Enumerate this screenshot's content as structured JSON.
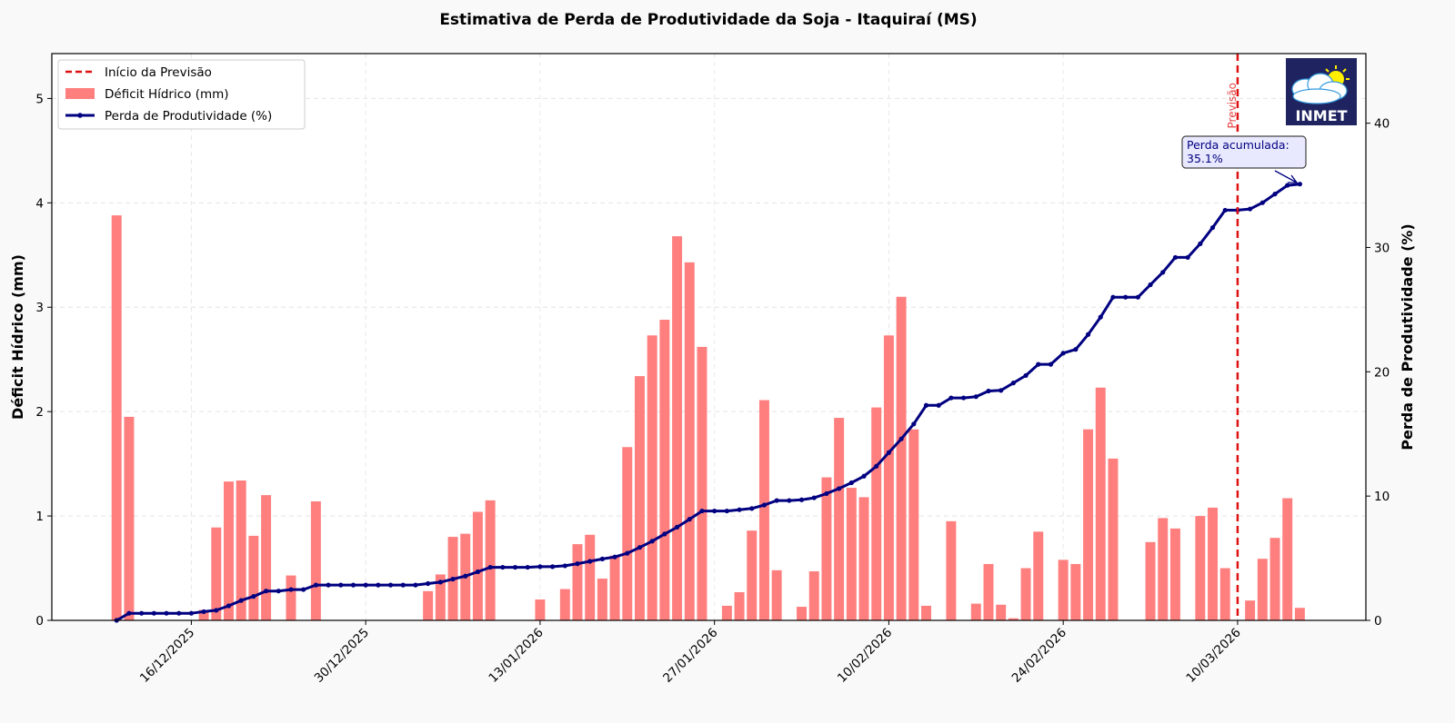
{
  "chart_data": {
    "type": "bar+line",
    "title": "Estimativa de Perda de Produtividade da Soja - Itaquiraí (MS)",
    "ylabel": "Déficit Hídrico (mm)",
    "ylabel_right": "Perda de Produtividade (%)",
    "ylim": [
      0,
      5.43
    ],
    "ylim_right": [
      0,
      45.6
    ],
    "yticks": [
      0,
      1,
      2,
      3,
      4,
      5
    ],
    "yticks_right": [
      0,
      10,
      20,
      30,
      40
    ],
    "grid": true,
    "start_date": "2025-12-10",
    "xlim_days_from_start": [
      -5.2,
      100.3
    ],
    "xticks": [
      {
        "day": 6,
        "label": "16/12/2025"
      },
      {
        "day": 20,
        "label": "30/12/2025"
      },
      {
        "day": 34,
        "label": "13/01/2026"
      },
      {
        "day": 48,
        "label": "27/01/2026"
      },
      {
        "day": 62,
        "label": "10/02/2026"
      },
      {
        "day": 76,
        "label": "24/02/2026"
      },
      {
        "day": 90,
        "label": "10/03/2026"
      }
    ],
    "forecast_start_day": 90,
    "forecast_label": "Previsão",
    "series": [
      {
        "name": "Déficit Hídrico (mm)",
        "kind": "bar",
        "axis": "left",
        "color": "#ff7f7f",
        "values": [
          3.88,
          1.95,
          0,
          0,
          0,
          0,
          0,
          0.1,
          0.89,
          1.33,
          1.34,
          0.81,
          1.2,
          0,
          0.43,
          0,
          1.14,
          0,
          0,
          0,
          0,
          0,
          0,
          0,
          0,
          0.28,
          0.44,
          0.8,
          0.83,
          1.04,
          1.15,
          0,
          0,
          0,
          0.2,
          0,
          0.3,
          0.73,
          0.82,
          0.4,
          0.62,
          1.66,
          2.34,
          2.73,
          2.88,
          3.68,
          3.43,
          2.62,
          0,
          0.14,
          0.27,
          0.86,
          2.11,
          0.48,
          0,
          0.13,
          0.47,
          1.37,
          1.94,
          1.27,
          1.18,
          2.04,
          2.73,
          3.1,
          1.83,
          0.14,
          0,
          0.95,
          0,
          0.16,
          0.54,
          0.15,
          0.02,
          0.5,
          0.85,
          0,
          0.58,
          0.54,
          1.83,
          2.23,
          1.55,
          0,
          0,
          0.75,
          0.98,
          0.88,
          0,
          1.0,
          1.08,
          0.5,
          0,
          0.19,
          0.59,
          0.79,
          1.17,
          0.12
        ]
      },
      {
        "name": "Perda de Produtividade (%)",
        "kind": "line",
        "axis": "right",
        "color": "#000080",
        "values": [
          0,
          0.57,
          0.57,
          0.57,
          0.57,
          0.57,
          0.57,
          0.7,
          0.81,
          1.17,
          1.6,
          1.93,
          2.36,
          2.36,
          2.48,
          2.48,
          2.84,
          2.84,
          2.84,
          2.84,
          2.84,
          2.84,
          2.84,
          2.84,
          2.84,
          2.96,
          3.08,
          3.32,
          3.56,
          3.91,
          4.27,
          4.27,
          4.27,
          4.27,
          4.32,
          4.32,
          4.39,
          4.56,
          4.75,
          4.94,
          5.1,
          5.4,
          5.87,
          6.37,
          6.95,
          7.5,
          8.14,
          8.8,
          8.8,
          8.8,
          8.9,
          9.0,
          9.28,
          9.64,
          9.64,
          9.7,
          9.86,
          10.2,
          10.6,
          11.07,
          11.6,
          12.4,
          13.5,
          14.6,
          15.8,
          17.3,
          17.3,
          17.9,
          17.9,
          18.0,
          18.45,
          18.5,
          19.1,
          19.7,
          20.6,
          20.6,
          21.5,
          21.8,
          23.0,
          24.4,
          26.0,
          26.0,
          26.0,
          27.0,
          28.0,
          29.2,
          29.2,
          30.3,
          31.6,
          33.0,
          33.0,
          33.1,
          33.6,
          34.3,
          35.0,
          35.1
        ]
      }
    ],
    "legend": {
      "placement": "top-left",
      "entries": [
        "Início da Previsão",
        "Déficit Hídrico (mm)",
        "Perda de Produtividade (%)"
      ]
    },
    "annotation": {
      "line1": "Perda acumulada:",
      "line2": "35.1%"
    },
    "logo_text": "INMET",
    "forecast_color": "#dd1111"
  }
}
